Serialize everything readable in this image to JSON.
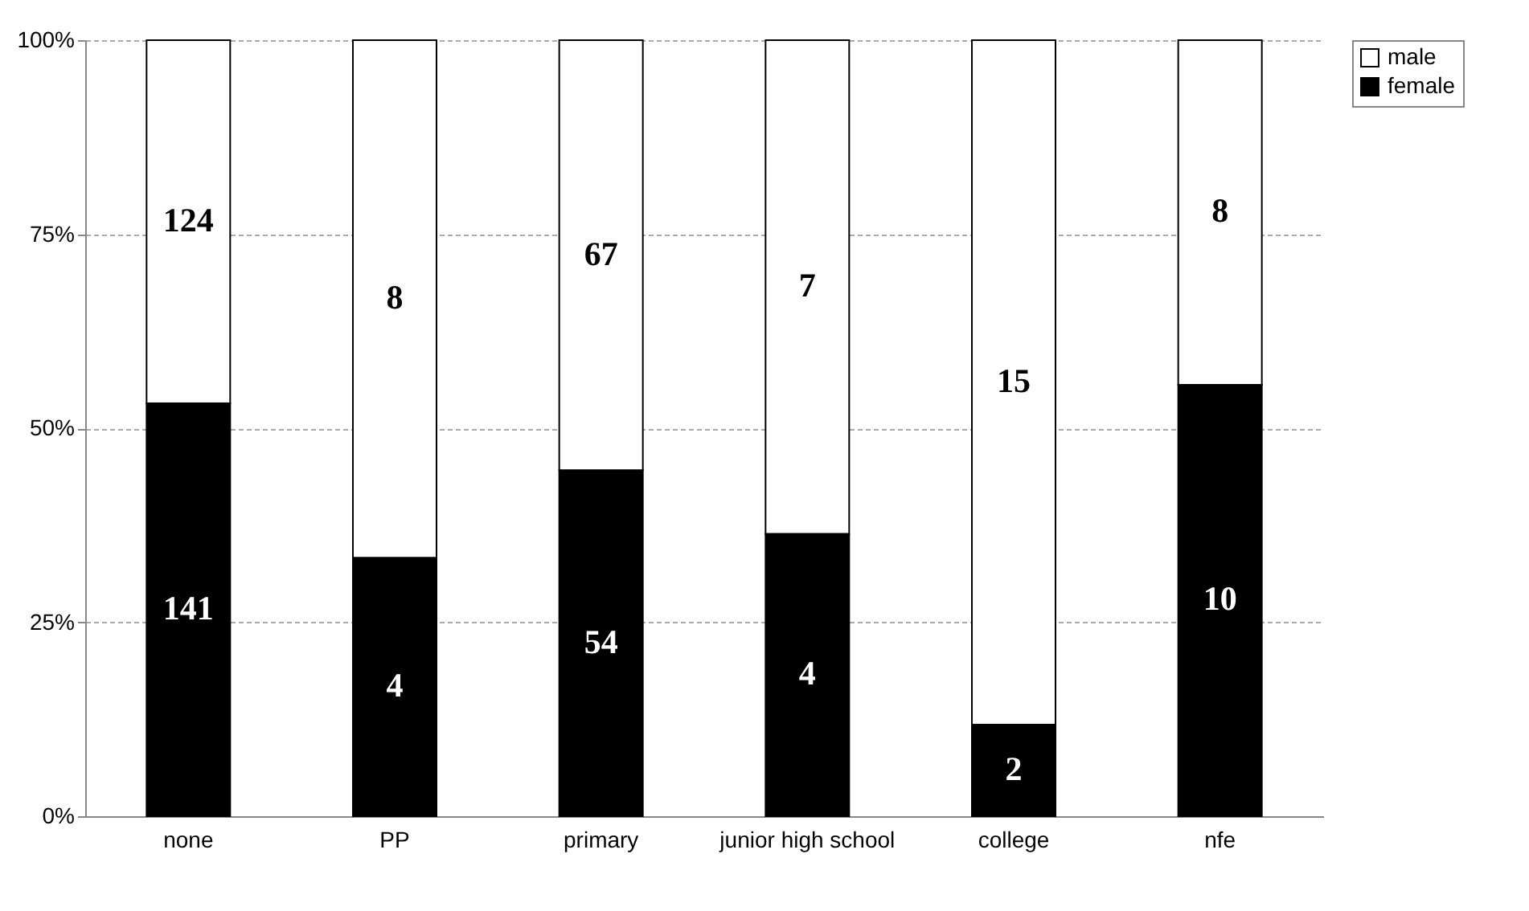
{
  "chart_data": {
    "type": "bar",
    "stacked": true,
    "categories": [
      "none",
      "PP",
      "primary",
      "junior high school",
      "college",
      "nfe"
    ],
    "series": [
      {
        "name": "female",
        "color": "#000000",
        "values": [
          53.2,
          33.3,
          44.6,
          36.4,
          11.8,
          55.6
        ]
      },
      {
        "name": "male",
        "color": "#ffffff",
        "values": [
          46.8,
          66.7,
          55.4,
          63.6,
          88.2,
          44.4
        ]
      }
    ],
    "annotations": [
      "141",
      "4",
      "54",
      "4",
      "2",
      "10",
      "124",
      "8",
      "67",
      "7",
      "15",
      "8"
    ],
    "ylim": [
      0,
      100
    ],
    "yticks": [
      {
        "value": 0,
        "label": "0%"
      },
      {
        "value": 25,
        "label": "25%"
      },
      {
        "value": 50,
        "label": "50%"
      },
      {
        "value": 75,
        "label": "75%"
      },
      {
        "value": 100,
        "label": "100%"
      }
    ],
    "grid": "y",
    "legend": "top right"
  }
}
